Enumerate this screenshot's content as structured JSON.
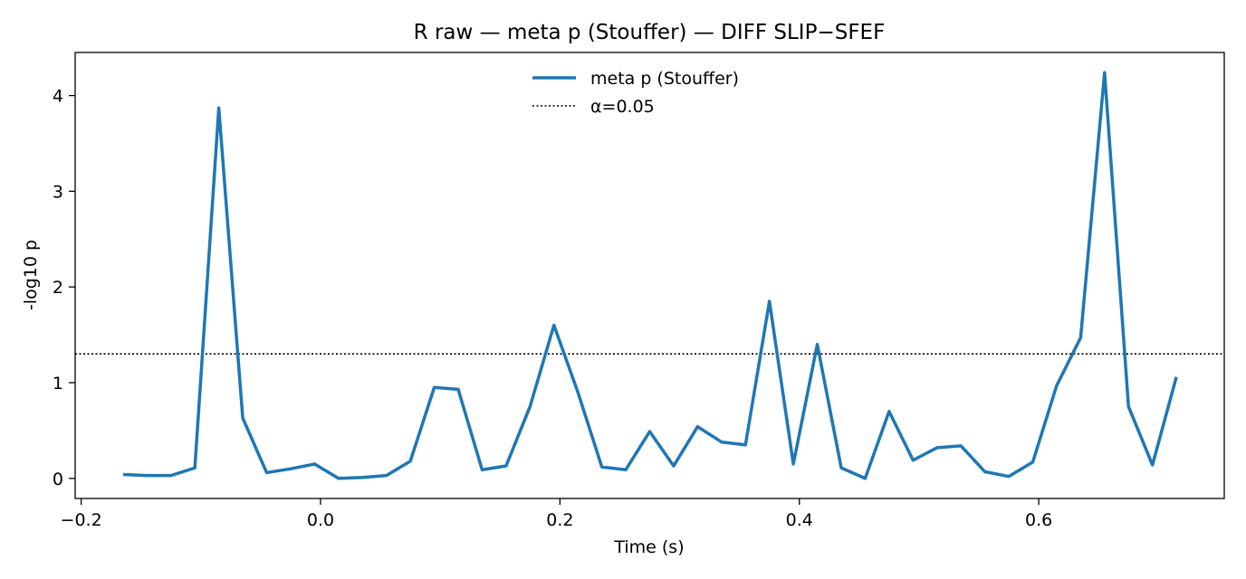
{
  "chart_data": {
    "type": "line",
    "title": "R raw — meta p (Stouffer) — DIFF SLIP−SFEF",
    "xlabel": "Time (s)",
    "ylabel": "-log10 p",
    "xlim": [
      -0.205,
      0.755
    ],
    "ylim": [
      -0.21,
      4.45
    ],
    "xticks": [
      -0.2,
      0.0,
      0.2,
      0.4,
      0.6
    ],
    "xtick_labels": [
      "−0.2",
      "0.0",
      "0.2",
      "0.4",
      "0.6"
    ],
    "yticks": [
      0,
      1,
      2,
      3,
      4
    ],
    "ytick_labels": [
      "0",
      "1",
      "2",
      "3",
      "4"
    ],
    "grid": false,
    "legend_position": "upper center",
    "series": [
      {
        "name": "meta p (Stouffer)",
        "color": "#1f77b4",
        "style": "solid",
        "x": [
          -0.165,
          -0.145,
          -0.125,
          -0.105,
          -0.085,
          -0.065,
          -0.045,
          -0.025,
          -0.005,
          0.015,
          0.035,
          0.055,
          0.075,
          0.095,
          0.115,
          0.135,
          0.155,
          0.175,
          0.195,
          0.215,
          0.235,
          0.255,
          0.275,
          0.295,
          0.315,
          0.335,
          0.355,
          0.375,
          0.395,
          0.415,
          0.435,
          0.455,
          0.475,
          0.495,
          0.515,
          0.535,
          0.555,
          0.575,
          0.595,
          0.615,
          0.635,
          0.655,
          0.675,
          0.695,
          0.715
        ],
        "y": [
          0.04,
          0.03,
          0.03,
          0.11,
          3.87,
          0.63,
          0.06,
          0.1,
          0.15,
          0.0,
          0.01,
          0.03,
          0.18,
          0.95,
          0.93,
          0.09,
          0.13,
          0.75,
          1.6,
          0.9,
          0.12,
          0.09,
          0.49,
          0.13,
          0.54,
          0.38,
          0.35,
          1.85,
          0.15,
          1.4,
          0.11,
          0.0,
          0.7,
          0.19,
          0.32,
          0.34,
          0.07,
          0.02,
          0.17,
          0.97,
          1.47,
          4.24,
          0.75,
          0.14,
          1.06
        ]
      }
    ],
    "reference_lines": [
      {
        "name": "α=0.05",
        "y": 1.301,
        "color": "#000000",
        "style": "dotted"
      }
    ]
  }
}
